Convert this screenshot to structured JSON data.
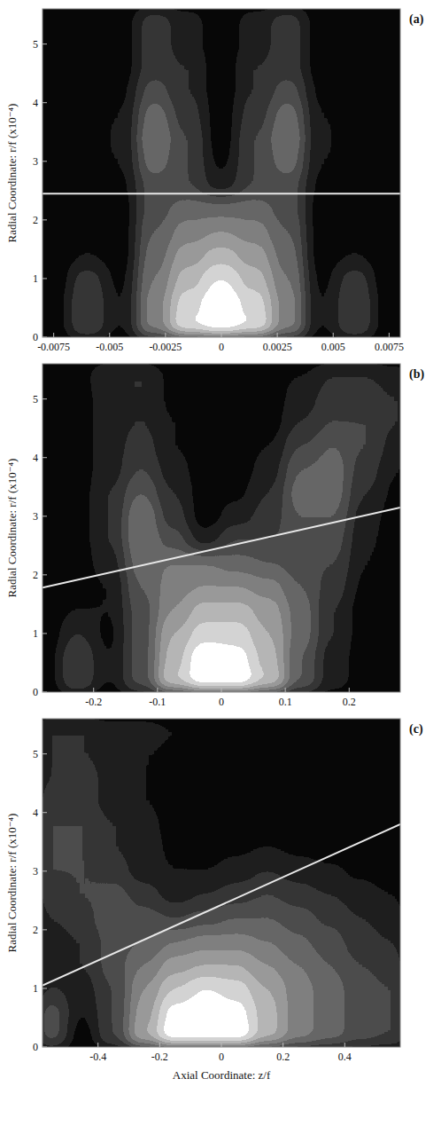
{
  "chart_data": [
    {
      "type": "contour",
      "panel_label": "(a)",
      "y_label": "Radial Coordinate: r/f (x10⁻⁴)",
      "xlim": [
        -0.008,
        0.008
      ],
      "xticks": [
        -0.0075,
        -0.005,
        -0.0025,
        0,
        0.0025,
        0.005,
        0.0075
      ],
      "ylim": [
        0,
        5.6
      ],
      "yticks": [
        0,
        1,
        2,
        3,
        4,
        5
      ],
      "x": [
        -0.0075,
        -0.006,
        -0.0045,
        -0.003,
        -0.0015,
        0,
        0.0015,
        0.003,
        0.0045,
        0.006,
        0.0075
      ],
      "y": [
        0.2,
        0.6,
        1.0,
        1.4,
        1.8,
        2.2,
        2.6,
        3.0,
        3.4,
        3.8,
        4.2,
        4.6,
        5.0,
        5.4
      ],
      "cells": [
        [
          0.05,
          0.3,
          0.1,
          0.55,
          0.9,
          1.0,
          0.9,
          0.55,
          0.1,
          0.3,
          0.05
        ],
        [
          0.05,
          0.3,
          0.1,
          0.55,
          0.85,
          1.0,
          0.85,
          0.55,
          0.1,
          0.3,
          0.05
        ],
        [
          0.03,
          0.25,
          0.08,
          0.5,
          0.75,
          0.9,
          0.75,
          0.5,
          0.08,
          0.25,
          0.03
        ],
        [
          0.02,
          0.1,
          0.05,
          0.45,
          0.65,
          0.75,
          0.65,
          0.45,
          0.05,
          0.1,
          0.02
        ],
        [
          0.02,
          0.05,
          0.05,
          0.4,
          0.55,
          0.6,
          0.55,
          0.4,
          0.05,
          0.05,
          0.02
        ],
        [
          0.02,
          0.03,
          0.05,
          0.35,
          0.45,
          0.45,
          0.45,
          0.35,
          0.05,
          0.03,
          0.02
        ],
        [
          0.02,
          0.03,
          0.08,
          0.35,
          0.3,
          0.15,
          0.3,
          0.35,
          0.08,
          0.03,
          0.02
        ],
        [
          0.02,
          0.03,
          0.1,
          0.45,
          0.3,
          0.08,
          0.3,
          0.45,
          0.1,
          0.03,
          0.02
        ],
        [
          0.02,
          0.03,
          0.12,
          0.5,
          0.3,
          0.05,
          0.3,
          0.5,
          0.12,
          0.03,
          0.02
        ],
        [
          0.02,
          0.03,
          0.1,
          0.45,
          0.25,
          0.05,
          0.25,
          0.45,
          0.1,
          0.03,
          0.02
        ],
        [
          0.02,
          0.03,
          0.08,
          0.35,
          0.2,
          0.04,
          0.2,
          0.35,
          0.08,
          0.03,
          0.02
        ],
        [
          0.02,
          0.02,
          0.05,
          0.25,
          0.2,
          0.04,
          0.2,
          0.25,
          0.05,
          0.02,
          0.02
        ],
        [
          0.02,
          0.02,
          0.05,
          0.25,
          0.15,
          0.03,
          0.15,
          0.25,
          0.05,
          0.02,
          0.02
        ],
        [
          0.02,
          0.02,
          0.05,
          0.25,
          0.15,
          0.03,
          0.15,
          0.25,
          0.05,
          0.02,
          0.02
        ]
      ],
      "reference_line": {
        "x": [
          -0.008,
          0.008
        ],
        "y": [
          2.45,
          2.45
        ]
      }
    },
    {
      "type": "contour",
      "panel_label": "(b)",
      "y_label": "Radial Coordinate: r/f (x10⁻⁴)",
      "xlim": [
        -0.28,
        0.28
      ],
      "xticks": [
        -0.2,
        -0.1,
        0,
        0.1,
        0.2
      ],
      "ylim": [
        0,
        5.6
      ],
      "yticks": [
        0,
        1,
        2,
        3,
        4,
        5
      ],
      "x": [
        -0.275,
        -0.225,
        -0.175,
        -0.125,
        -0.075,
        -0.025,
        0.025,
        0.075,
        0.125,
        0.175,
        0.225,
        0.275
      ],
      "y": [
        0.2,
        0.6,
        1.0,
        1.4,
        1.8,
        2.2,
        2.6,
        3.0,
        3.4,
        3.8,
        4.2,
        4.6,
        5.0,
        5.4
      ],
      "cells": [
        [
          0.05,
          0.3,
          0.1,
          0.35,
          0.8,
          1.0,
          1.0,
          0.8,
          0.4,
          0.15,
          0.05,
          0.03
        ],
        [
          0.05,
          0.3,
          0.1,
          0.35,
          0.75,
          1.0,
          0.95,
          0.75,
          0.4,
          0.15,
          0.05,
          0.03
        ],
        [
          0.03,
          0.2,
          0.08,
          0.35,
          0.7,
          0.85,
          0.85,
          0.7,
          0.45,
          0.2,
          0.05,
          0.03
        ],
        [
          0.03,
          0.1,
          0.1,
          0.35,
          0.6,
          0.75,
          0.75,
          0.65,
          0.45,
          0.2,
          0.05,
          0.03
        ],
        [
          0.03,
          0.05,
          0.1,
          0.4,
          0.55,
          0.6,
          0.6,
          0.55,
          0.4,
          0.25,
          0.08,
          0.03
        ],
        [
          0.03,
          0.05,
          0.15,
          0.45,
          0.5,
          0.5,
          0.45,
          0.4,
          0.35,
          0.3,
          0.1,
          0.03
        ],
        [
          0.03,
          0.05,
          0.2,
          0.5,
          0.35,
          0.15,
          0.3,
          0.3,
          0.35,
          0.35,
          0.12,
          0.05
        ],
        [
          0.03,
          0.05,
          0.2,
          0.5,
          0.25,
          0.05,
          0.15,
          0.25,
          0.4,
          0.4,
          0.15,
          0.05
        ],
        [
          0.03,
          0.05,
          0.2,
          0.4,
          0.2,
          0.05,
          0.08,
          0.2,
          0.45,
          0.45,
          0.2,
          0.08
        ],
        [
          0.03,
          0.05,
          0.15,
          0.3,
          0.15,
          0.05,
          0.05,
          0.15,
          0.4,
          0.45,
          0.25,
          0.1
        ],
        [
          0.03,
          0.05,
          0.15,
          0.25,
          0.1,
          0.03,
          0.03,
          0.1,
          0.3,
          0.4,
          0.3,
          0.15
        ],
        [
          0.03,
          0.05,
          0.15,
          0.2,
          0.1,
          0.03,
          0.03,
          0.05,
          0.2,
          0.3,
          0.3,
          0.2
        ],
        [
          0.03,
          0.05,
          0.15,
          0.2,
          0.08,
          0.03,
          0.03,
          0.05,
          0.15,
          0.25,
          0.25,
          0.2
        ],
        [
          0.03,
          0.05,
          0.2,
          0.2,
          0.08,
          0.03,
          0.03,
          0.05,
          0.1,
          0.2,
          0.2,
          0.15
        ]
      ],
      "reference_line": {
        "x": [
          -0.28,
          0.28
        ],
        "y": [
          1.78,
          3.15
        ]
      }
    },
    {
      "type": "contour",
      "panel_label": "(c)",
      "y_label": "Radial Coordinate: r/f (x10⁻⁴)",
      "x_label": "Axial Coordinate: z/f",
      "xlim": [
        -0.58,
        0.58
      ],
      "xticks": [
        -0.4,
        -0.2,
        0,
        0.2,
        0.4
      ],
      "ylim": [
        0,
        5.6
      ],
      "yticks": [
        0,
        1,
        2,
        3,
        4,
        5
      ],
      "x": [
        -0.55,
        -0.45,
        -0.35,
        -0.25,
        -0.15,
        -0.05,
        0.05,
        0.15,
        0.25,
        0.35,
        0.45,
        0.55
      ],
      "y": [
        0.2,
        0.6,
        1.0,
        1.4,
        1.8,
        2.2,
        2.6,
        3.0,
        3.4,
        3.8,
        4.2,
        4.6,
        5.0,
        5.4
      ],
      "cells": [
        [
          0.35,
          0.05,
          0.3,
          0.7,
          1.0,
          1.0,
          1.0,
          0.75,
          0.55,
          0.45,
          0.35,
          0.3
        ],
        [
          0.35,
          0.1,
          0.3,
          0.65,
          0.95,
          1.0,
          0.95,
          0.75,
          0.55,
          0.45,
          0.35,
          0.3
        ],
        [
          0.2,
          0.15,
          0.3,
          0.6,
          0.8,
          0.9,
          0.85,
          0.7,
          0.55,
          0.45,
          0.35,
          0.3
        ],
        [
          0.15,
          0.2,
          0.35,
          0.5,
          0.65,
          0.7,
          0.7,
          0.6,
          0.5,
          0.4,
          0.3,
          0.25
        ],
        [
          0.15,
          0.2,
          0.35,
          0.4,
          0.5,
          0.55,
          0.55,
          0.5,
          0.42,
          0.35,
          0.25,
          0.2
        ],
        [
          0.2,
          0.25,
          0.4,
          0.35,
          0.3,
          0.35,
          0.4,
          0.4,
          0.35,
          0.28,
          0.2,
          0.15
        ],
        [
          0.25,
          0.3,
          0.35,
          0.25,
          0.15,
          0.2,
          0.25,
          0.3,
          0.25,
          0.2,
          0.15,
          0.1
        ],
        [
          0.3,
          0.3,
          0.25,
          0.15,
          0.1,
          0.1,
          0.15,
          0.2,
          0.15,
          0.12,
          0.08,
          0.05
        ],
        [
          0.3,
          0.3,
          0.2,
          0.15,
          0.08,
          0.05,
          0.08,
          0.1,
          0.08,
          0.06,
          0.05,
          0.03
        ],
        [
          0.3,
          0.3,
          0.2,
          0.15,
          0.05,
          0.03,
          0.05,
          0.05,
          0.05,
          0.03,
          0.03,
          0.03
        ],
        [
          0.25,
          0.25,
          0.15,
          0.1,
          0.05,
          0.03,
          0.03,
          0.03,
          0.03,
          0.03,
          0.03,
          0.03
        ],
        [
          0.2,
          0.25,
          0.15,
          0.1,
          0.05,
          0.05,
          0.03,
          0.03,
          0.03,
          0.03,
          0.03,
          0.03
        ],
        [
          0.2,
          0.2,
          0.15,
          0.1,
          0.08,
          0.05,
          0.03,
          0.03,
          0.03,
          0.03,
          0.03,
          0.03
        ],
        [
          0.2,
          0.2,
          0.15,
          0.15,
          0.1,
          0.05,
          0.03,
          0.03,
          0.03,
          0.03,
          0.03,
          0.03
        ]
      ],
      "reference_line": {
        "x": [
          -0.58,
          0.58
        ],
        "y": [
          1.05,
          3.8
        ]
      }
    }
  ]
}
